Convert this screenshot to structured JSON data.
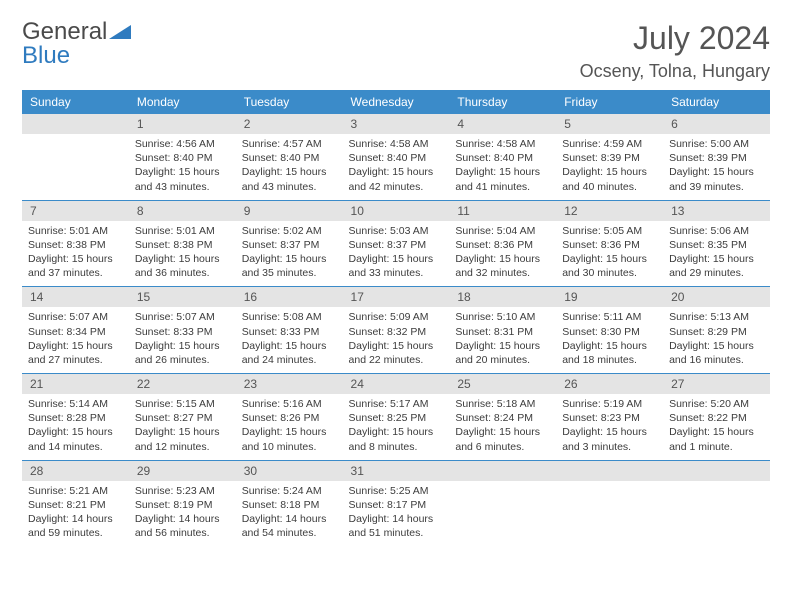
{
  "brand": {
    "word1": "General",
    "word2": "Blue"
  },
  "title": "July 2024",
  "location": "Ocseny, Tolna, Hungary",
  "headerColor": "#3b8bc9",
  "dayHeaders": [
    "Sunday",
    "Monday",
    "Tuesday",
    "Wednesday",
    "Thursday",
    "Friday",
    "Saturday"
  ],
  "weeks": [
    [
      {
        "n": "",
        "sr": "",
        "ss": "",
        "dl": ""
      },
      {
        "n": "1",
        "sr": "4:56 AM",
        "ss": "8:40 PM",
        "dl": "15 hours and 43 minutes."
      },
      {
        "n": "2",
        "sr": "4:57 AM",
        "ss": "8:40 PM",
        "dl": "15 hours and 43 minutes."
      },
      {
        "n": "3",
        "sr": "4:58 AM",
        "ss": "8:40 PM",
        "dl": "15 hours and 42 minutes."
      },
      {
        "n": "4",
        "sr": "4:58 AM",
        "ss": "8:40 PM",
        "dl": "15 hours and 41 minutes."
      },
      {
        "n": "5",
        "sr": "4:59 AM",
        "ss": "8:39 PM",
        "dl": "15 hours and 40 minutes."
      },
      {
        "n": "6",
        "sr": "5:00 AM",
        "ss": "8:39 PM",
        "dl": "15 hours and 39 minutes."
      }
    ],
    [
      {
        "n": "7",
        "sr": "5:01 AM",
        "ss": "8:38 PM",
        "dl": "15 hours and 37 minutes."
      },
      {
        "n": "8",
        "sr": "5:01 AM",
        "ss": "8:38 PM",
        "dl": "15 hours and 36 minutes."
      },
      {
        "n": "9",
        "sr": "5:02 AM",
        "ss": "8:37 PM",
        "dl": "15 hours and 35 minutes."
      },
      {
        "n": "10",
        "sr": "5:03 AM",
        "ss": "8:37 PM",
        "dl": "15 hours and 33 minutes."
      },
      {
        "n": "11",
        "sr": "5:04 AM",
        "ss": "8:36 PM",
        "dl": "15 hours and 32 minutes."
      },
      {
        "n": "12",
        "sr": "5:05 AM",
        "ss": "8:36 PM",
        "dl": "15 hours and 30 minutes."
      },
      {
        "n": "13",
        "sr": "5:06 AM",
        "ss": "8:35 PM",
        "dl": "15 hours and 29 minutes."
      }
    ],
    [
      {
        "n": "14",
        "sr": "5:07 AM",
        "ss": "8:34 PM",
        "dl": "15 hours and 27 minutes."
      },
      {
        "n": "15",
        "sr": "5:07 AM",
        "ss": "8:33 PM",
        "dl": "15 hours and 26 minutes."
      },
      {
        "n": "16",
        "sr": "5:08 AM",
        "ss": "8:33 PM",
        "dl": "15 hours and 24 minutes."
      },
      {
        "n": "17",
        "sr": "5:09 AM",
        "ss": "8:32 PM",
        "dl": "15 hours and 22 minutes."
      },
      {
        "n": "18",
        "sr": "5:10 AM",
        "ss": "8:31 PM",
        "dl": "15 hours and 20 minutes."
      },
      {
        "n": "19",
        "sr": "5:11 AM",
        "ss": "8:30 PM",
        "dl": "15 hours and 18 minutes."
      },
      {
        "n": "20",
        "sr": "5:13 AM",
        "ss": "8:29 PM",
        "dl": "15 hours and 16 minutes."
      }
    ],
    [
      {
        "n": "21",
        "sr": "5:14 AM",
        "ss": "8:28 PM",
        "dl": "15 hours and 14 minutes."
      },
      {
        "n": "22",
        "sr": "5:15 AM",
        "ss": "8:27 PM",
        "dl": "15 hours and 12 minutes."
      },
      {
        "n": "23",
        "sr": "5:16 AM",
        "ss": "8:26 PM",
        "dl": "15 hours and 10 minutes."
      },
      {
        "n": "24",
        "sr": "5:17 AM",
        "ss": "8:25 PM",
        "dl": "15 hours and 8 minutes."
      },
      {
        "n": "25",
        "sr": "5:18 AM",
        "ss": "8:24 PM",
        "dl": "15 hours and 6 minutes."
      },
      {
        "n": "26",
        "sr": "5:19 AM",
        "ss": "8:23 PM",
        "dl": "15 hours and 3 minutes."
      },
      {
        "n": "27",
        "sr": "5:20 AM",
        "ss": "8:22 PM",
        "dl": "15 hours and 1 minute."
      }
    ],
    [
      {
        "n": "28",
        "sr": "5:21 AM",
        "ss": "8:21 PM",
        "dl": "14 hours and 59 minutes."
      },
      {
        "n": "29",
        "sr": "5:23 AM",
        "ss": "8:19 PM",
        "dl": "14 hours and 56 minutes."
      },
      {
        "n": "30",
        "sr": "5:24 AM",
        "ss": "8:18 PM",
        "dl": "14 hours and 54 minutes."
      },
      {
        "n": "31",
        "sr": "5:25 AM",
        "ss": "8:17 PM",
        "dl": "14 hours and 51 minutes."
      },
      {
        "n": "",
        "sr": "",
        "ss": "",
        "dl": ""
      },
      {
        "n": "",
        "sr": "",
        "ss": "",
        "dl": ""
      },
      {
        "n": "",
        "sr": "",
        "ss": "",
        "dl": ""
      }
    ]
  ],
  "labels": {
    "sunrise": "Sunrise: ",
    "sunset": "Sunset: ",
    "daylight": "Daylight: "
  }
}
